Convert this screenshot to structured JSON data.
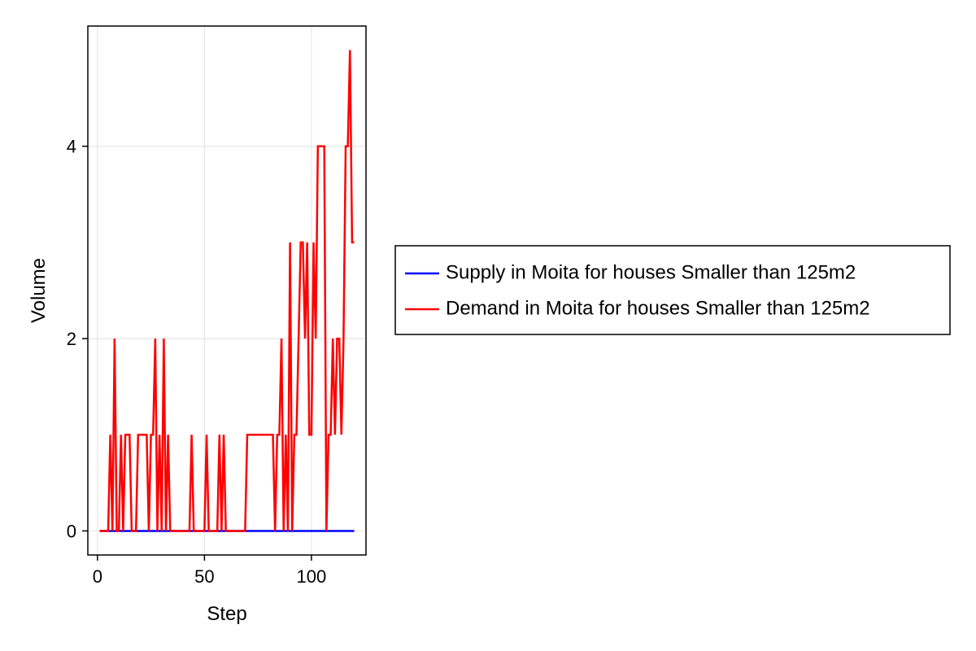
{
  "chart_data": {
    "type": "line",
    "title": "",
    "xlabel": "Step",
    "ylabel": "Volume",
    "xlim": [
      -4.5,
      125.5
    ],
    "ylim": [
      -0.25,
      5.25
    ],
    "xticks": [
      0,
      50,
      100
    ],
    "yticks": [
      0,
      2,
      4
    ],
    "grid": true,
    "legend_position": "right",
    "x": [
      1,
      2,
      3,
      4,
      5,
      6,
      7,
      8,
      9,
      10,
      11,
      12,
      13,
      14,
      15,
      16,
      17,
      18,
      19,
      20,
      21,
      22,
      23,
      24,
      25,
      26,
      27,
      28,
      29,
      30,
      31,
      32,
      33,
      34,
      35,
      36,
      37,
      38,
      39,
      40,
      41,
      42,
      43,
      44,
      45,
      46,
      47,
      48,
      49,
      50,
      51,
      52,
      53,
      54,
      55,
      56,
      57,
      58,
      59,
      60,
      61,
      62,
      63,
      64,
      65,
      66,
      67,
      68,
      69,
      70,
      71,
      72,
      73,
      74,
      75,
      76,
      77,
      78,
      79,
      80,
      81,
      82,
      83,
      84,
      85,
      86,
      87,
      88,
      89,
      90,
      91,
      92,
      93,
      94,
      95,
      96,
      97,
      98,
      99,
      100,
      101,
      102,
      103,
      104,
      105,
      106,
      107,
      108,
      109,
      110,
      111,
      112,
      113,
      114,
      115,
      116,
      117,
      118,
      119,
      120
    ],
    "series": [
      {
        "name": "Supply in Moita for houses Smaller than 125m2",
        "color": "#0000ff",
        "values": [
          0,
          0,
          0,
          0,
          0,
          0,
          0,
          0,
          0,
          0,
          0,
          0,
          0,
          0,
          0,
          0,
          0,
          0,
          0,
          0,
          0,
          0,
          0,
          0,
          0,
          0,
          0,
          0,
          0,
          0,
          0,
          0,
          0,
          0,
          0,
          0,
          0,
          0,
          0,
          0,
          0,
          0,
          0,
          0,
          0,
          0,
          0,
          0,
          0,
          0,
          0,
          0,
          0,
          0,
          0,
          0,
          0,
          0,
          0,
          0,
          0,
          0,
          0,
          0,
          0,
          0,
          0,
          0,
          0,
          0,
          0,
          0,
          0,
          0,
          0,
          0,
          0,
          0,
          0,
          0,
          0,
          0,
          0,
          0,
          0,
          0,
          0,
          0,
          0,
          0,
          0,
          0,
          0,
          0,
          0,
          0,
          0,
          0,
          0,
          0,
          0,
          0,
          0,
          0,
          0,
          0,
          0,
          0,
          0,
          0,
          0,
          0,
          0,
          0,
          0,
          0,
          0,
          0,
          0,
          0
        ]
      },
      {
        "name": "Demand in Moita for houses Smaller than 125m2",
        "color": "#ff0000",
        "values": [
          0,
          0,
          0,
          0,
          0,
          1,
          0,
          2,
          0,
          0,
          1,
          0,
          1,
          1,
          1,
          0,
          0,
          0,
          1,
          1,
          1,
          1,
          1,
          0,
          1,
          1,
          2,
          0,
          1,
          0,
          2,
          0,
          1,
          0,
          0,
          0,
          0,
          0,
          0,
          0,
          0,
          0,
          0,
          1,
          0,
          0,
          0,
          0,
          0,
          0,
          1,
          0,
          0,
          0,
          0,
          0,
          1,
          0,
          1,
          0,
          0,
          0,
          0,
          0,
          0,
          0,
          0,
          0,
          0,
          1,
          1,
          1,
          1,
          1,
          1,
          1,
          1,
          1,
          1,
          1,
          1,
          1,
          0,
          1,
          1,
          2,
          0,
          1,
          0,
          3,
          0,
          1,
          1,
          2,
          3,
          3,
          2,
          3,
          1,
          1,
          3,
          2,
          4,
          4,
          4,
          4,
          0,
          1,
          1,
          2,
          1,
          2,
          2,
          1,
          2,
          4,
          4,
          5,
          3,
          3
        ]
      }
    ]
  }
}
